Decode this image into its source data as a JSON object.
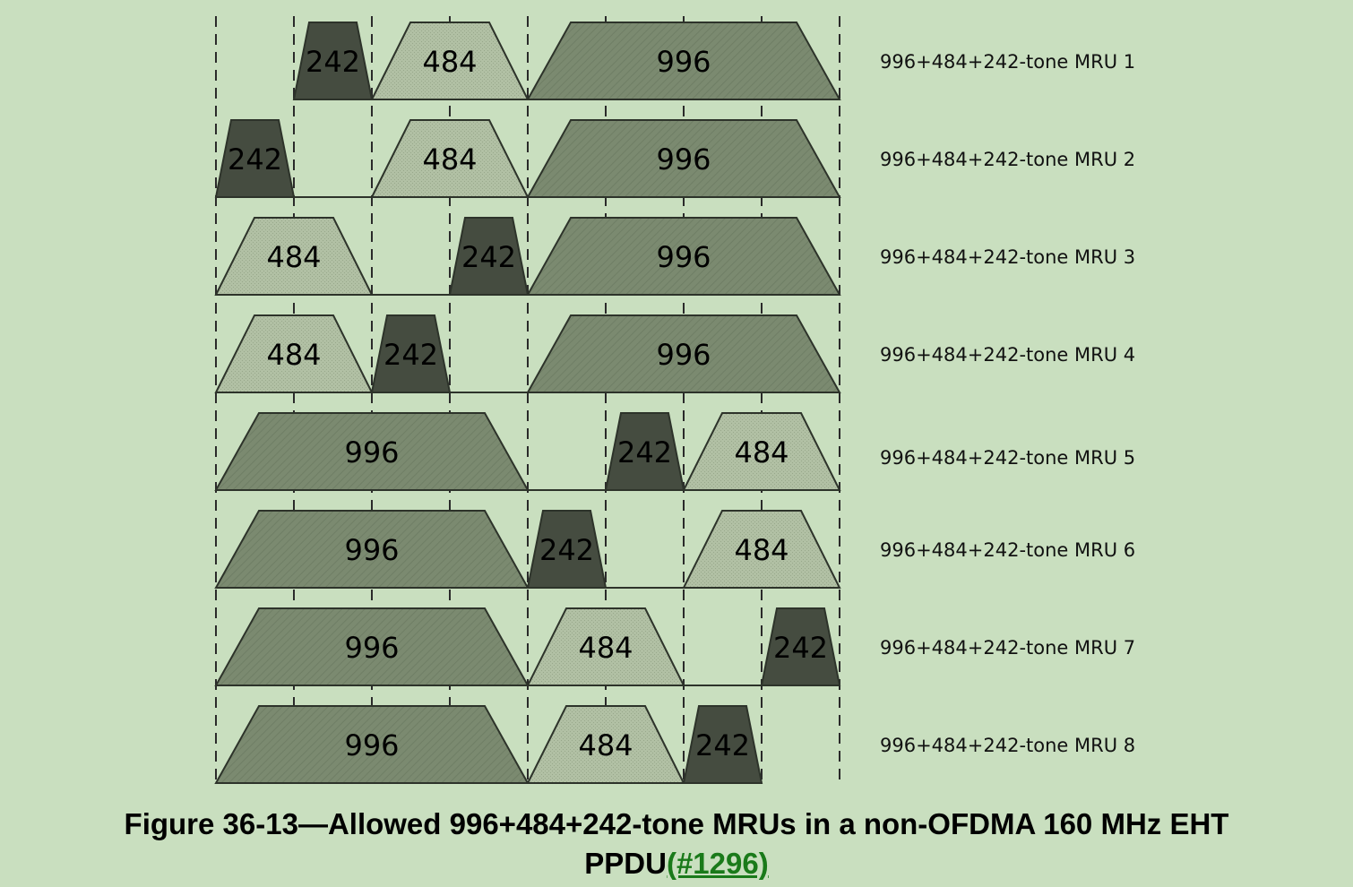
{
  "diagram": {
    "subchannel_count": 8,
    "colors": {
      "background": "#c9dfbf",
      "rus_242": "#454c40",
      "rus_484": "#b1c0a4",
      "rus_996": "#7b8a70",
      "outline": "#2d332a"
    },
    "rows": [
      {
        "label": "996+484+242-tone MRU 1",
        "rus": [
          {
            "size": "242",
            "start": 1,
            "span": 1
          },
          {
            "size": "484",
            "start": 2,
            "span": 2
          },
          {
            "size": "996",
            "start": 4,
            "span": 4
          }
        ]
      },
      {
        "label": "996+484+242-tone MRU 2",
        "rus": [
          {
            "size": "242",
            "start": 0,
            "span": 1
          },
          {
            "size": "484",
            "start": 2,
            "span": 2
          },
          {
            "size": "996",
            "start": 4,
            "span": 4
          }
        ]
      },
      {
        "label": "996+484+242-tone MRU 3",
        "rus": [
          {
            "size": "484",
            "start": 0,
            "span": 2
          },
          {
            "size": "242",
            "start": 3,
            "span": 1
          },
          {
            "size": "996",
            "start": 4,
            "span": 4
          }
        ]
      },
      {
        "label": "996+484+242-tone MRU 4",
        "rus": [
          {
            "size": "484",
            "start": 0,
            "span": 2
          },
          {
            "size": "242",
            "start": 2,
            "span": 1
          },
          {
            "size": "996",
            "start": 4,
            "span": 4
          }
        ]
      },
      {
        "label": "996+484+242-tone MRU 5",
        "rus": [
          {
            "size": "996",
            "start": 0,
            "span": 4
          },
          {
            "size": "242",
            "start": 5,
            "span": 1
          },
          {
            "size": "484",
            "start": 6,
            "span": 2
          }
        ]
      },
      {
        "label": "996+484+242-tone MRU 6",
        "rus": [
          {
            "size": "996",
            "start": 0,
            "span": 4
          },
          {
            "size": "242",
            "start": 4,
            "span": 1
          },
          {
            "size": "484",
            "start": 6,
            "span": 2
          }
        ]
      },
      {
        "label": "996+484+242-tone MRU 7",
        "rus": [
          {
            "size": "996",
            "start": 0,
            "span": 4
          },
          {
            "size": "484",
            "start": 4,
            "span": 2
          },
          {
            "size": "242",
            "start": 7,
            "span": 1
          }
        ]
      },
      {
        "label": "996+484+242-tone MRU 8",
        "rus": [
          {
            "size": "996",
            "start": 0,
            "span": 4
          },
          {
            "size": "484",
            "start": 4,
            "span": 2
          },
          {
            "size": "242",
            "start": 6,
            "span": 1
          }
        ]
      }
    ]
  },
  "caption": {
    "line1": "Figure 36-13—Allowed 996+484+242-tone MRUs in a non-OFDMA 160 MHz EHT",
    "line2": "PPDU",
    "link": "(#1296)"
  }
}
